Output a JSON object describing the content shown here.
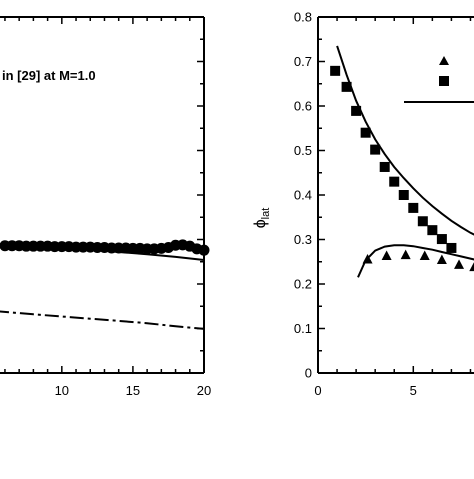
{
  "chart_data": [
    {
      "type": "line",
      "annotations": [
        "in [29] at M=1.0"
      ],
      "x_ticks": [
        "10",
        "15",
        "20"
      ],
      "xlim": [
        5.3,
        20
      ],
      "ylim": [
        0,
        0.8
      ],
      "grid": false,
      "series": [
        {
          "style": "markers-filled-circle",
          "x": [
            5.3,
            6,
            6.5,
            7,
            7.5,
            8,
            8.5,
            9,
            9.5,
            10,
            10.5,
            11,
            11.5,
            12,
            12.5,
            13,
            13.5,
            14,
            14.5,
            15,
            15.5,
            16,
            16.5,
            17,
            17.5,
            18,
            18.5,
            19,
            19.5,
            20
          ],
          "y": [
            0.287,
            0.286,
            0.286,
            0.286,
            0.285,
            0.285,
            0.285,
            0.285,
            0.284,
            0.284,
            0.284,
            0.283,
            0.283,
            0.283,
            0.282,
            0.282,
            0.281,
            0.281,
            0.281,
            0.28,
            0.28,
            0.279,
            0.279,
            0.28,
            0.282,
            0.287,
            0.288,
            0.285,
            0.279,
            0.276
          ]
        },
        {
          "style": "solid-line",
          "x": [
            5.3,
            8,
            10,
            12,
            14,
            16,
            18,
            20
          ],
          "y": [
            0.287,
            0.285,
            0.282,
            0.277,
            0.272,
            0.267,
            0.261,
            0.254
          ]
        },
        {
          "style": "dash-dot-line",
          "x": [
            5.3,
            8,
            10,
            12,
            14,
            16,
            18,
            20
          ],
          "y": [
            0.139,
            0.132,
            0.127,
            0.122,
            0.117,
            0.112,
            0.105,
            0.099
          ]
        }
      ]
    },
    {
      "type": "line",
      "ylabel": "ϕ",
      "ylabel_subscript": "lat",
      "y_ticks": [
        "0",
        "0.1",
        "0.2",
        "0.3",
        "0.4",
        "0.5",
        "0.6",
        "0.7",
        "0.8"
      ],
      "x_ticks": [
        "0",
        "5"
      ],
      "xlim": [
        0,
        8.5
      ],
      "ylim": [
        0,
        0.8
      ],
      "grid": false,
      "series": [
        {
          "style": "markers-filled-square",
          "x": [
            0.9,
            1.5,
            2.0,
            2.5,
            3.0,
            3.5,
            4.0,
            4.5,
            5.0,
            5.5,
            6.0,
            6.5,
            7.0
          ],
          "y": [
            0.679,
            0.643,
            0.589,
            0.54,
            0.502,
            0.463,
            0.43,
            0.4,
            0.371,
            0.341,
            0.321,
            0.301,
            0.281
          ]
        },
        {
          "style": "solid-line",
          "x": [
            1.0,
            1.5,
            2.0,
            2.5,
            3.0,
            3.5,
            4.0,
            4.5,
            5.0,
            5.5,
            6.0,
            6.5,
            7.0,
            7.5,
            8.0,
            8.5
          ],
          "y": [
            0.735,
            0.67,
            0.612,
            0.565,
            0.525,
            0.492,
            0.463,
            0.438,
            0.415,
            0.394,
            0.375,
            0.358,
            0.342,
            0.328,
            0.315,
            0.305
          ]
        },
        {
          "style": "markers-filled-triangle",
          "x": [
            2.6,
            3.6,
            4.6,
            5.6,
            6.5,
            7.4,
            8.2
          ],
          "y": [
            0.255,
            0.263,
            0.265,
            0.263,
            0.254,
            0.243,
            0.238
          ]
        },
        {
          "style": "solid-line",
          "x": [
            2.1,
            2.5,
            3.0,
            3.5,
            4.0,
            4.5,
            5.0,
            5.5,
            6.0,
            6.5,
            7.0,
            7.5,
            8.0,
            8.5
          ],
          "y": [
            0.215,
            0.253,
            0.275,
            0.284,
            0.287,
            0.287,
            0.285,
            0.281,
            0.277,
            0.272,
            0.267,
            0.262,
            0.257,
            0.252
          ]
        }
      ],
      "legend": {
        "placement": "top-right",
        "entries": [
          {
            "marker": "triangle"
          },
          {
            "marker": "square"
          },
          {
            "marker": "solid-line"
          }
        ]
      }
    }
  ]
}
